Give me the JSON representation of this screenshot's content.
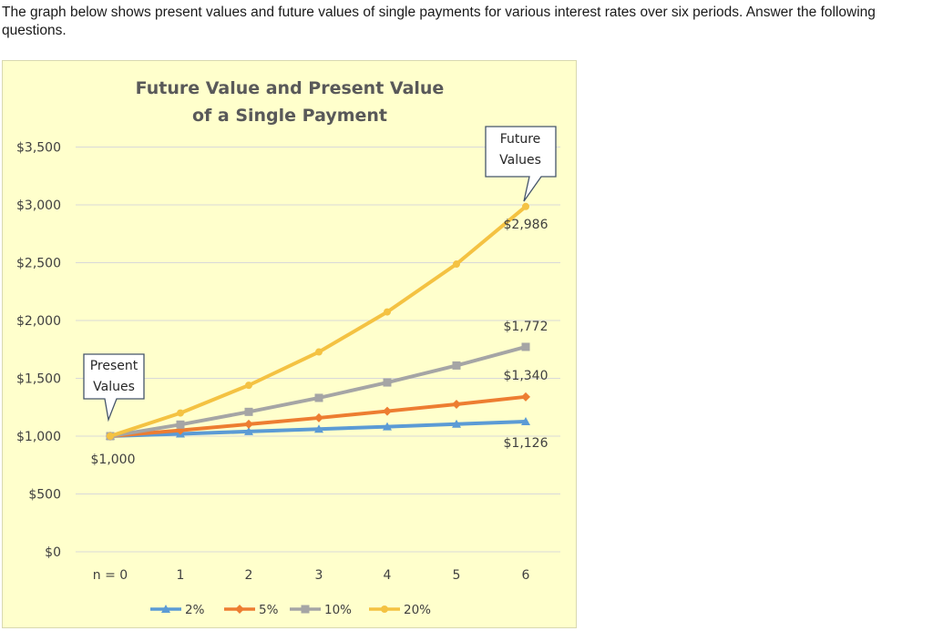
{
  "question": {
    "text": "The graph below shows present values and future values of single payments for various interest rates over six periods. Answer the following questions."
  },
  "chart_data": {
    "type": "line",
    "title_lines": [
      "Future Value and Present Value",
      "of a Single Payment"
    ],
    "xlabel": "",
    "ylabel": "",
    "x": [
      "n = 0",
      "1",
      "2",
      "3",
      "4",
      "5",
      "6"
    ],
    "ylim": [
      0,
      3500
    ],
    "yticks": [
      0,
      500,
      1000,
      1500,
      2000,
      2500,
      3000,
      3500
    ],
    "ytick_labels": [
      "$0",
      "$500",
      "$1,000",
      "$1,500",
      "$2,000",
      "$2,500",
      "$3,000",
      "$3,500"
    ],
    "grid": true,
    "legend_position": "bottom",
    "series": [
      {
        "name": "2%",
        "color": "#5b9bd5",
        "marker": "triangle",
        "values": [
          1000,
          1020,
          1040,
          1061,
          1082,
          1104,
          1126
        ]
      },
      {
        "name": "5%",
        "color": "#ed7d31",
        "marker": "diamond",
        "values": [
          1000,
          1050,
          1103,
          1158,
          1216,
          1276,
          1340
        ]
      },
      {
        "name": "10%",
        "color": "#a5a5a5",
        "marker": "square",
        "values": [
          1000,
          1100,
          1210,
          1331,
          1464,
          1611,
          1772
        ]
      },
      {
        "name": "20%",
        "color": "#f4c242",
        "marker": "circle",
        "values": [
          1000,
          1200,
          1440,
          1728,
          2074,
          2488,
          2986
        ]
      }
    ],
    "value_labels": [
      "$2,986",
      "$1,772",
      "$1,340",
      "$1,126"
    ],
    "start_label": "$1,000",
    "annotations": {
      "present": [
        "Present",
        "Values"
      ],
      "future": [
        "Future",
        "Values"
      ]
    }
  }
}
